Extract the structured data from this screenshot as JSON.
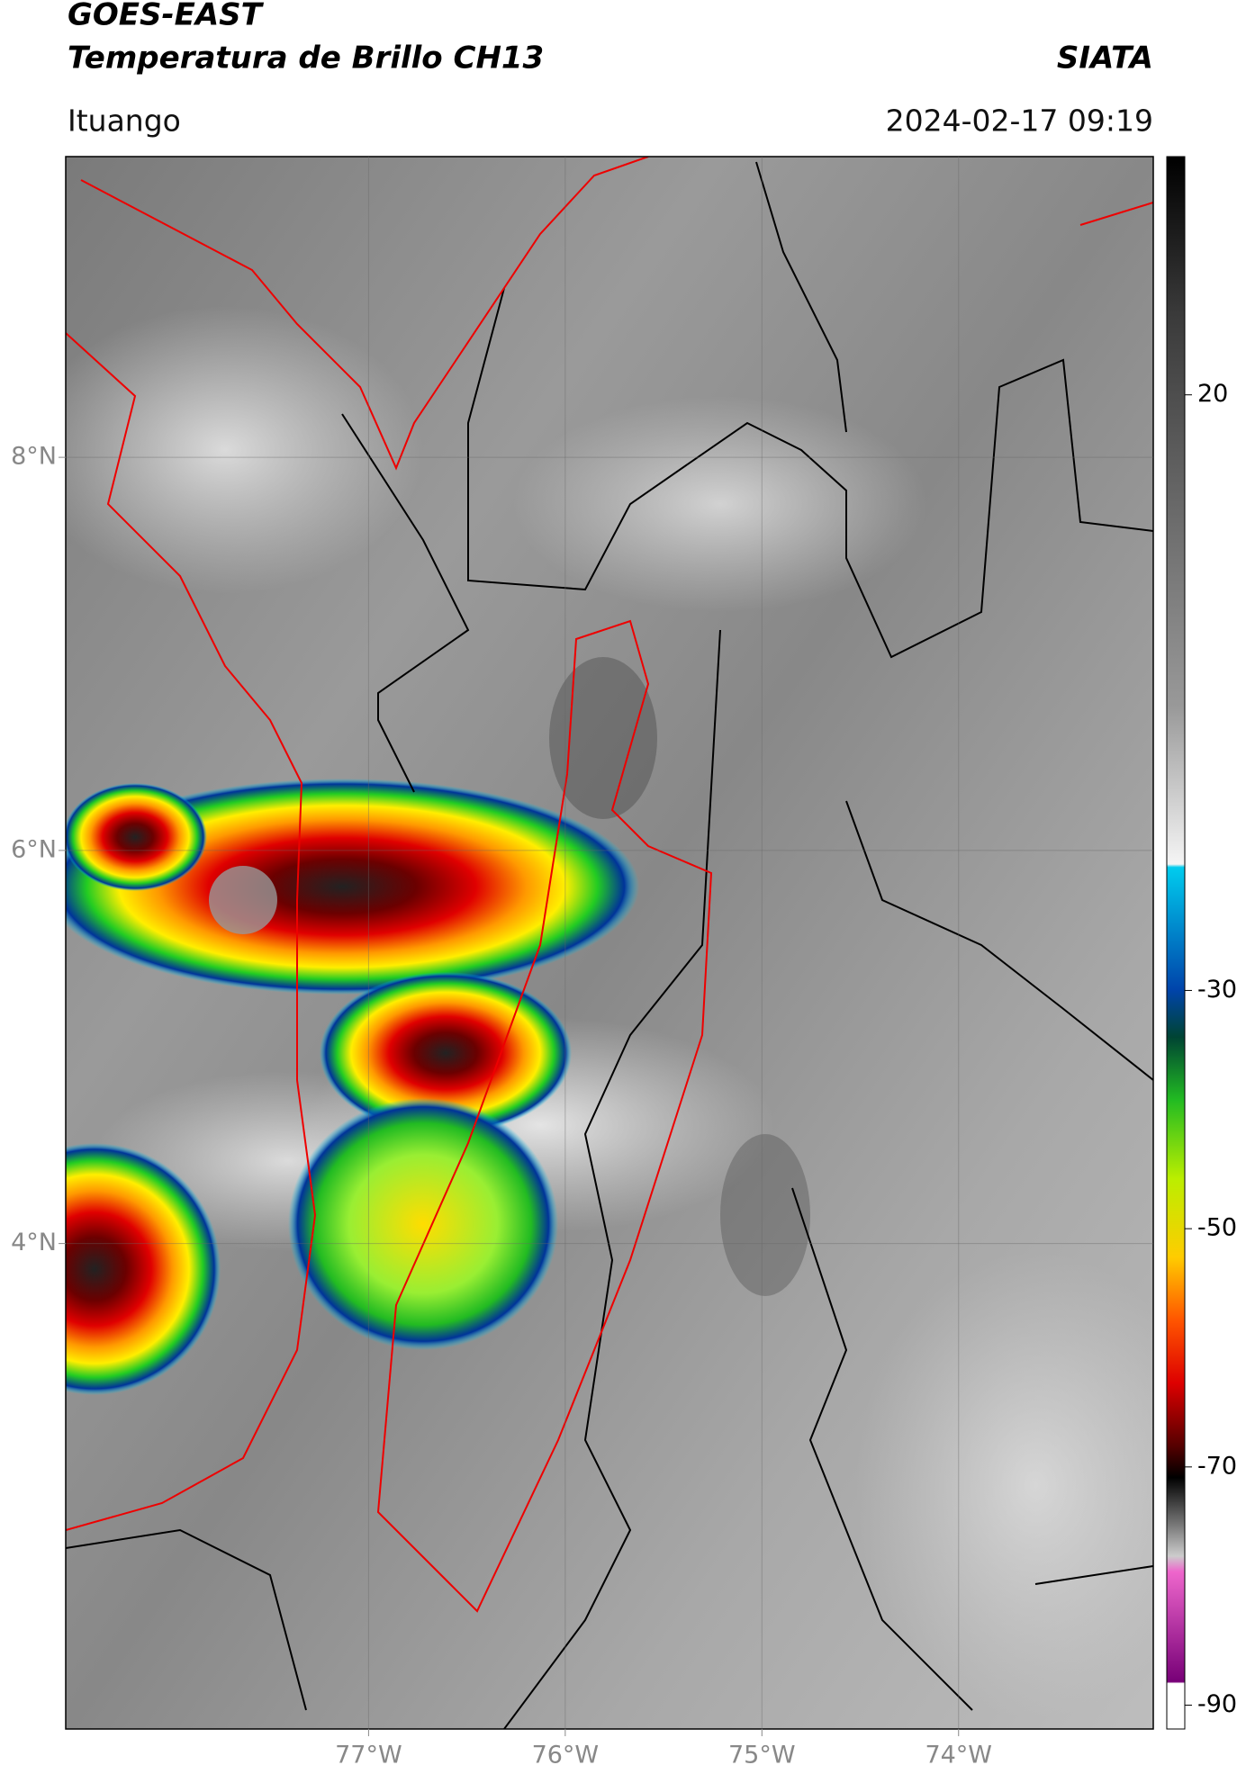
{
  "header": {
    "title": "GOES-EAST",
    "subtitle": "Temperatura de Brillo CH13",
    "source": "SIATA",
    "location": "Ituango",
    "datetime": "2024-02-17 09:19"
  },
  "map": {
    "xlim": [
      -78.54,
      -73.01
    ],
    "ylim": [
      1.53,
      9.53
    ],
    "xticks": [
      {
        "value": -77,
        "label": "77°W"
      },
      {
        "value": -76,
        "label": "76°W"
      },
      {
        "value": -75,
        "label": "75°W"
      },
      {
        "value": -74,
        "label": "74°W"
      }
    ],
    "yticks": [
      {
        "value": 8,
        "label": "8°N"
      },
      {
        "value": 6,
        "label": "6°N"
      },
      {
        "value": 4,
        "label": "4°N"
      }
    ],
    "grid": true
  },
  "colorbar": {
    "range": [
      40,
      -92
    ],
    "ticks": [
      20,
      -30,
      -50,
      -70,
      -90
    ]
  }
}
